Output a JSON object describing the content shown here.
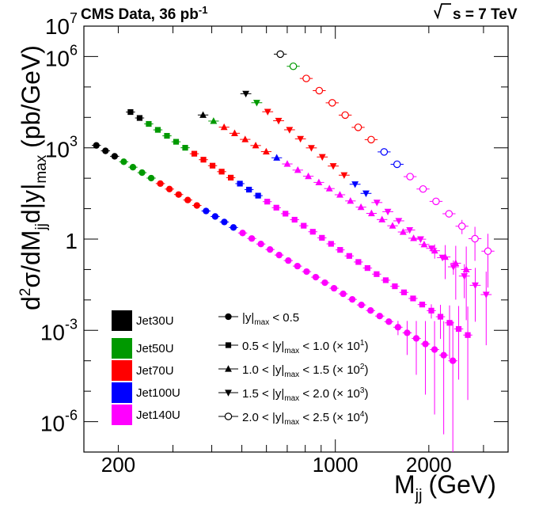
{
  "chart_data": {
    "type": "scatter",
    "title_left": "CMS Data, 36 pb",
    "title_left_sup": "-1",
    "title_right": "s = 7 TeV",
    "xlabel": "M",
    "xlabel_sub": "jj",
    "xlabel_unit": "(GeV)",
    "ylabel_parts": [
      "d",
      "2",
      "σ/dM",
      "jj",
      "d|y|",
      "max",
      " (pb/GeV)"
    ],
    "xscale": "log",
    "yscale": "log",
    "xlim": [
      155,
      3600
    ],
    "ylim": [
      1e-07,
      10000000.0
    ],
    "x_ticks": [
      {
        "v": 200,
        "label": "200"
      },
      {
        "v": 1000,
        "label": "1000"
      },
      {
        "v": 2000,
        "label": "2000"
      }
    ],
    "y_ticks": [
      {
        "v": 1e-06,
        "base": "10",
        "exp": "-6"
      },
      {
        "v": 0.001,
        "base": "10",
        "exp": "-3"
      },
      {
        "v": 1,
        "base": "1",
        "exp": ""
      },
      {
        "v": 1000.0,
        "base": "10",
        "exp": "3"
      },
      {
        "v": 1000000.0,
        "base": "10",
        "exp": "6"
      },
      {
        "v": 10000000.0,
        "base": "10",
        "exp": "7"
      }
    ],
    "triggers": [
      {
        "name": "Jet30U",
        "color": "#000000"
      },
      {
        "name": "Jet50U",
        "color": "#009900"
      },
      {
        "name": "Jet70U",
        "color": "#ff0000"
      },
      {
        "name": "Jet100U",
        "color": "#0000ff"
      },
      {
        "name": "Jet140U",
        "color": "#ff00ff"
      }
    ],
    "series": [
      {
        "name": "|y|max < 0.5",
        "legend_pre": "|y|",
        "legend_sub": "max",
        "legend_post": " < 0.5",
        "legend_exp": "",
        "marker": "circle",
        "start_x": 170,
        "end_x": 2390,
        "start_y": 1200,
        "end_y": 0.0001,
        "points": 40,
        "trig_edges": [
          197,
          260,
          380,
          480
        ],
        "err_from": 33
      },
      {
        "name": "0.5 < |y|max < 1.0 (× 10^1)",
        "legend_pre": "0.5 < |y|",
        "legend_sub": "max",
        "legend_post": " < 1.0 (× 10",
        "legend_exp": "1",
        "marker": "square",
        "start_x": 219,
        "end_x": 2670,
        "start_y": 15000,
        "end_y": 0.0007,
        "points": 38,
        "trig_edges": [
          250,
          340,
          480,
          580
        ],
        "err_from": 33
      },
      {
        "name": "1.0 < |y|max < 1.5 (× 10^2)",
        "legend_pre": "1.0 < |y|",
        "legend_sub": "max",
        "legend_post": " < 1.5 (× 10",
        "legend_exp": "2",
        "marker": "triangle-up",
        "start_x": 375,
        "end_x": 2640,
        "start_y": 12000,
        "end_y": 0.1,
        "points": 26,
        "trig_edges": [
          390,
          430,
          600,
          700
        ],
        "err_from": 22
      },
      {
        "name": "1.5 < |y|max < 2.0 (× 10^3)",
        "legend_pre": "1.5 < |y|",
        "legend_sub": "max",
        "legend_post": " < 2.0 (× 10",
        "legend_exp": "3",
        "marker": "triangle-down",
        "start_x": 515,
        "end_x": 3060,
        "start_y": 60000,
        "end_y": 0.015,
        "points": 23,
        "trig_edges": [
          530,
          600,
          1140,
          1320
        ],
        "err_from": 19
      },
      {
        "name": "2.0 < |y|max < 2.5 (× 10^4)",
        "legend_pre": "2.0 < |y|",
        "legend_sub": "max",
        "legend_post": " < 2.5 (× 10",
        "legend_exp": "4",
        "marker": "circle-open",
        "start_x": 665,
        "end_x": 3100,
        "start_y": 1200000,
        "end_y": 0.4,
        "points": 17,
        "trig_edges": [
          700,
          780,
          1380,
          1700
        ],
        "err_from": 14
      }
    ]
  }
}
